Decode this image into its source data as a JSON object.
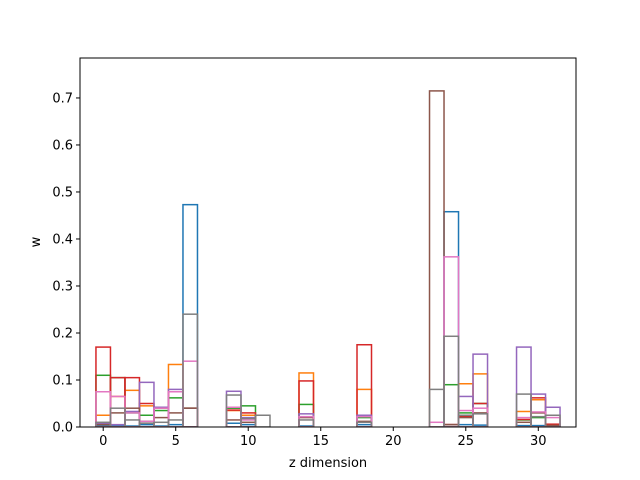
{
  "chart_data": {
    "type": "bar",
    "style": "overlaid step histograms (unfilled)",
    "xlabel": "z dimension",
    "ylabel": "w",
    "xlim": [
      -1.6,
      32.6
    ],
    "ylim": [
      0,
      0.785
    ],
    "xticks": [
      0,
      5,
      10,
      15,
      20,
      25,
      30
    ],
    "xtick_labels": [
      "0",
      "5",
      "10",
      "15",
      "20",
      "25",
      "30"
    ],
    "yticks": [
      0.0,
      0.1,
      0.2,
      0.3,
      0.4,
      0.5,
      0.6,
      0.7
    ],
    "ytick_labels": [
      "0.0",
      "0.1",
      "0.2",
      "0.3",
      "0.4",
      "0.5",
      "0.6",
      "0.7"
    ],
    "grid": false,
    "x": [
      0,
      1,
      2,
      3,
      4,
      5,
      6,
      7,
      8,
      9,
      10,
      11,
      12,
      13,
      14,
      15,
      16,
      17,
      18,
      19,
      20,
      21,
      22,
      23,
      24,
      25,
      26,
      27,
      28,
      29,
      30,
      31
    ],
    "series": [
      {
        "color": "#1f77b4",
        "values": [
          0.002,
          0.002,
          0.002,
          0.005,
          0.002,
          0.005,
          0.473,
          0,
          0,
          0.008,
          0.005,
          0,
          0,
          0,
          0.002,
          0,
          0,
          0,
          0.005,
          0,
          0,
          0,
          0,
          0,
          0.458,
          0.005,
          0.004,
          0,
          0,
          0.003,
          0.003,
          0.003
        ]
      },
      {
        "color": "#ff7f0e",
        "values": [
          0.025,
          0.065,
          0.078,
          0.045,
          0.04,
          0.133,
          0.04,
          0,
          0,
          0.035,
          0.025,
          0,
          0,
          0,
          0.115,
          0,
          0,
          0,
          0.08,
          0,
          0,
          0,
          0,
          0,
          0.005,
          0.092,
          0.113,
          0,
          0,
          0.033,
          0.058,
          0.005
        ]
      },
      {
        "color": "#2ca02c",
        "values": [
          0.11,
          0.105,
          0.03,
          0.025,
          0.035,
          0.062,
          0.04,
          0,
          0,
          0.04,
          0.045,
          0,
          0,
          0,
          0.048,
          0,
          0,
          0,
          0.02,
          0,
          0,
          0,
          0,
          0,
          0.09,
          0.03,
          0.05,
          0,
          0,
          0.015,
          0.02,
          0.004
        ]
      },
      {
        "color": "#d62728",
        "values": [
          0.17,
          0.105,
          0.105,
          0.05,
          0.042,
          0.075,
          0.04,
          0,
          0,
          0.036,
          0.03,
          0,
          0,
          0,
          0.098,
          0,
          0,
          0,
          0.175,
          0,
          0,
          0,
          0,
          0,
          0.005,
          0.022,
          0.05,
          0,
          0,
          0.016,
          0.062,
          0.006
        ]
      },
      {
        "color": "#9467bd",
        "values": [
          0.008,
          0.005,
          0.033,
          0.095,
          0.042,
          0.08,
          0.04,
          0,
          0,
          0.076,
          0.02,
          0,
          0,
          0,
          0.028,
          0,
          0,
          0,
          0.025,
          0,
          0,
          0,
          0,
          0,
          0.005,
          0.065,
          0.155,
          0,
          0,
          0.17,
          0.07,
          0.042
        ]
      },
      {
        "color": "#8c564b",
        "values": [
          0.005,
          0.03,
          0.04,
          0.012,
          0.02,
          0.03,
          0.04,
          0,
          0,
          0.015,
          0.01,
          0,
          0,
          0,
          0.02,
          0,
          0,
          0,
          0.012,
          0,
          0,
          0,
          0,
          0.715,
          0.005,
          0.02,
          0.03,
          0,
          0,
          0.01,
          0.03,
          0.003
        ]
      },
      {
        "color": "#e377c2",
        "values": [
          0.075,
          0.065,
          0.03,
          0.012,
          0.04,
          0.075,
          0.14,
          0,
          0,
          0.042,
          0.015,
          0,
          0,
          0,
          0.022,
          0,
          0,
          0,
          0.022,
          0,
          0,
          0,
          0,
          0.01,
          0.362,
          0.035,
          0.04,
          0,
          0,
          0.02,
          0.032,
          0.02
        ]
      },
      {
        "color": "#7f7f7f",
        "values": [
          0.01,
          0.04,
          0.015,
          0.008,
          0.01,
          0.015,
          0.24,
          0,
          0,
          0.068,
          0.018,
          0.025,
          0,
          0,
          0.015,
          0,
          0,
          0,
          0.01,
          0,
          0,
          0,
          0,
          0.08,
          0.193,
          0.025,
          0.028,
          0,
          0,
          0.07,
          0.022,
          0.025
        ]
      }
    ]
  }
}
